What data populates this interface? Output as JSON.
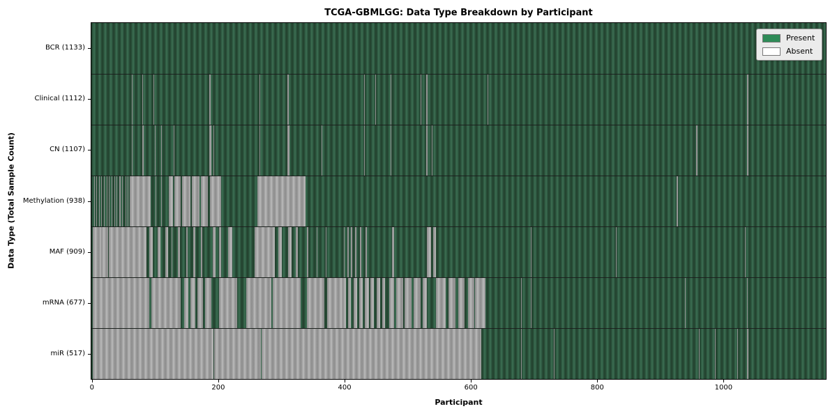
{
  "chart_data": {
    "type": "heatmap",
    "title": "TCGA-GBMLGG: Data Type Breakdown by Participant",
    "xlabel": "Participant",
    "ylabel": "Data Type (Total Sample Count)",
    "x_ticks": [
      0,
      200,
      400,
      600,
      800,
      1000
    ],
    "xlim": [
      -2,
      1163
    ],
    "n_participants": 1133,
    "grid": false,
    "legend_position": "upper right",
    "legend": [
      {
        "label": "Present",
        "color": "#2e8b57"
      },
      {
        "label": "Absent",
        "color": "#ffffff"
      }
    ],
    "colors": {
      "present_dark": "#223f2b",
      "present_mid": "#2e5942",
      "present_light": "#3e7154",
      "absent_dark": "#8c8c8c",
      "absent_mid": "#a3a3a3",
      "absent_light": "#bdbdbd",
      "separator": "#1a1a1a"
    },
    "rows": [
      {
        "name": "BCR",
        "count": 1133,
        "label": "BCR (1133)",
        "absent_ranges": []
      },
      {
        "name": "Clinical",
        "count": 1112,
        "label": "Clinical (1112)",
        "absent_ranges": [
          [
            62,
            63
          ],
          [
            79,
            80
          ],
          [
            97,
            98
          ],
          [
            185,
            187
          ],
          [
            265,
            266
          ],
          [
            309,
            311
          ],
          [
            431,
            432
          ],
          [
            448,
            449
          ],
          [
            473,
            474
          ],
          [
            520,
            521
          ],
          [
            529,
            531
          ],
          [
            626,
            628
          ],
          [
            1038,
            1040
          ]
        ]
      },
      {
        "name": "CN",
        "count": 1107,
        "label": "CN (1107)",
        "absent_ranges": [
          [
            62,
            63
          ],
          [
            79,
            81
          ],
          [
            99,
            100
          ],
          [
            109,
            110
          ],
          [
            128,
            129
          ],
          [
            185,
            188
          ],
          [
            192,
            193
          ],
          [
            265,
            266
          ],
          [
            309,
            312
          ],
          [
            363,
            364
          ],
          [
            431,
            432
          ],
          [
            473,
            474
          ],
          [
            529,
            531
          ],
          [
            538,
            539
          ],
          [
            957,
            959
          ],
          [
            1038,
            1040
          ]
        ]
      },
      {
        "name": "Methylation",
        "count": 938,
        "label": "Methylation (938)",
        "absent_ranges": [
          [
            2,
            3
          ],
          [
            6,
            7
          ],
          [
            10,
            11
          ],
          [
            14,
            15
          ],
          [
            18,
            19
          ],
          [
            22,
            23
          ],
          [
            26,
            27
          ],
          [
            30,
            31
          ],
          [
            34,
            35
          ],
          [
            38,
            39
          ],
          [
            42,
            44
          ],
          [
            47,
            48
          ],
          [
            52,
            53
          ],
          [
            56,
            57
          ],
          [
            59,
            92
          ],
          [
            100,
            101
          ],
          [
            109,
            110
          ],
          [
            121,
            128
          ],
          [
            130,
            140
          ],
          [
            142,
            155
          ],
          [
            157,
            170
          ],
          [
            172,
            183
          ],
          [
            186,
            204
          ],
          [
            261,
            338
          ],
          [
            926,
            928
          ]
        ]
      },
      {
        "name": "MAF",
        "count": 909,
        "label": "MAF (909)",
        "absent_ranges": [
          [
            0,
            13
          ],
          [
            14,
            25
          ],
          [
            26,
            85
          ],
          [
            90,
            95
          ],
          [
            103,
            108
          ],
          [
            115,
            120
          ],
          [
            125,
            126
          ],
          [
            135,
            139
          ],
          [
            148,
            151
          ],
          [
            160,
            163
          ],
          [
            172,
            174
          ],
          [
            190,
            195
          ],
          [
            200,
            204
          ],
          [
            215,
            222
          ],
          [
            257,
            289
          ],
          [
            295,
            300
          ],
          [
            310,
            315
          ],
          [
            322,
            325
          ],
          [
            340,
            342
          ],
          [
            355,
            357
          ],
          [
            370,
            371
          ],
          [
            398,
            400
          ],
          [
            404,
            406
          ],
          [
            410,
            412
          ],
          [
            416,
            418
          ],
          [
            424,
            426
          ],
          [
            433,
            435
          ],
          [
            475,
            478
          ],
          [
            530,
            537
          ],
          [
            540,
            545
          ],
          [
            695,
            696
          ],
          [
            830,
            831
          ],
          [
            1035,
            1036
          ]
        ]
      },
      {
        "name": "mRNA",
        "count": 677,
        "label": "mRNA (677)",
        "absent_ranges": [
          [
            0,
            90
          ],
          [
            93,
            140
          ],
          [
            145,
            152
          ],
          [
            155,
            163
          ],
          [
            166,
            175
          ],
          [
            178,
            188
          ],
          [
            200,
            229
          ],
          [
            244,
            283
          ],
          [
            286,
            330
          ],
          [
            340,
            368
          ],
          [
            372,
            396
          ],
          [
            396,
            402
          ],
          [
            405,
            410
          ],
          [
            414,
            420
          ],
          [
            423,
            428
          ],
          [
            432,
            438
          ],
          [
            441,
            446
          ],
          [
            450,
            456
          ],
          [
            459,
            464
          ],
          [
            470,
            478
          ],
          [
            481,
            492
          ],
          [
            495,
            506
          ],
          [
            509,
            520
          ],
          [
            523,
            530
          ],
          [
            545,
            560
          ],
          [
            565,
            575
          ],
          [
            580,
            590
          ],
          [
            595,
            605
          ],
          [
            607,
            623
          ],
          [
            680,
            681
          ],
          [
            695,
            696
          ],
          [
            940,
            941
          ],
          [
            1038,
            1039
          ]
        ]
      },
      {
        "name": "miR",
        "count": 517,
        "label": "miR (517)",
        "absent_ranges": [
          [
            0,
            192
          ],
          [
            193,
            267
          ],
          [
            268,
            616
          ],
          [
            679,
            680
          ],
          [
            731,
            732
          ],
          [
            962,
            963
          ],
          [
            987,
            988
          ],
          [
            1022,
            1023
          ],
          [
            1038,
            1040
          ]
        ]
      }
    ]
  }
}
